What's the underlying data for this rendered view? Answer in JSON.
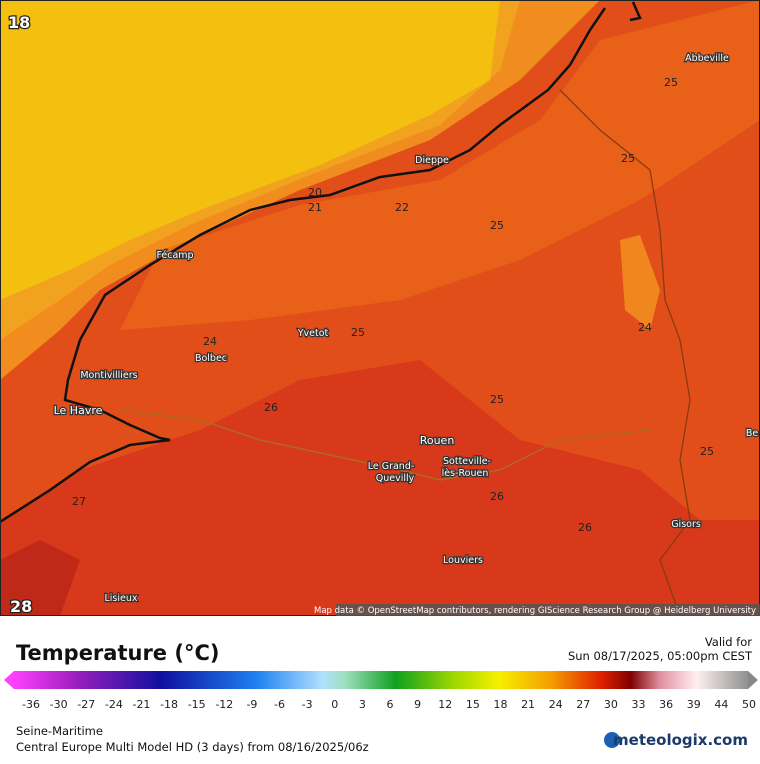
{
  "map": {
    "corner_labels": [
      "18",
      "28"
    ],
    "cities": [
      "Abbeville",
      "Dieppe",
      "Fécamp",
      "Yvetot",
      "Bolbec",
      "Montivilliers",
      "Le Havre",
      "Rouen",
      [
        "Le Grand-",
        "Quevilly"
      ],
      [
        "Sotteville-",
        "lès-Rouen"
      ],
      "Louviers",
      "Gisors",
      "Lisieux",
      "Be"
    ],
    "contour_labels": [
      25,
      25,
      20,
      21,
      22,
      25,
      24,
      24,
      25,
      26,
      25,
      25,
      26,
      27,
      26
    ],
    "attribution": "Map data © OpenStreetMap contributors, rendering GIScience Research Group @ Heidelberg University"
  },
  "legend": {
    "title": "Temperature (°C)",
    "valid_label": "Valid for",
    "valid_time": "Sun 08/17/2025, 05:00pm CEST",
    "ticks": [
      -36,
      -30,
      -27,
      -24,
      -21,
      -18,
      -15,
      -12,
      -9,
      -6,
      -3,
      0,
      3,
      6,
      9,
      12,
      15,
      18,
      21,
      24,
      27,
      30,
      33,
      36,
      39,
      44,
      50
    ]
  },
  "footer": {
    "region": "Seine-Maritime",
    "model": "Central Europe Multi Model HD (3 days) from 08/16/2025/06z",
    "brand": "meteologix.com"
  }
}
